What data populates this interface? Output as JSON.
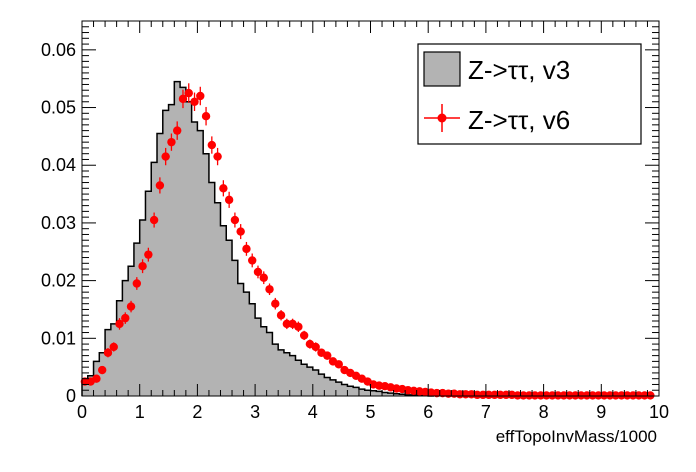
{
  "chart_data": {
    "type": "histogram",
    "xlabel": "effTopoInvMass/1000",
    "ylabel": "",
    "xlim": [
      0,
      10
    ],
    "ylim": [
      0,
      0.065
    ],
    "bin_width": 0.1,
    "x_ticks": [
      "0",
      "1",
      "2",
      "3",
      "4",
      "5",
      "6",
      "7",
      "8",
      "9",
      "10"
    ],
    "y_ticks": [
      "0",
      "0.01",
      "0.02",
      "0.03",
      "0.04",
      "0.05",
      "0.06"
    ],
    "legend_position": "top-right",
    "grid": false,
    "series": [
      {
        "name": "Z->ττ, v3",
        "style": "filled-step",
        "fill_color": "#b3b3b3",
        "line_color": "#000000",
        "bin_low_edges": [
          0.0,
          0.1,
          0.2,
          0.3,
          0.4,
          0.5,
          0.6,
          0.7,
          0.8,
          0.9,
          1.0,
          1.1,
          1.2,
          1.3,
          1.4,
          1.5,
          1.6,
          1.7,
          1.8,
          1.9,
          2.0,
          2.1,
          2.2,
          2.3,
          2.4,
          2.5,
          2.6,
          2.7,
          2.8,
          2.9,
          3.0,
          3.1,
          3.2,
          3.3,
          3.4,
          3.5,
          3.6,
          3.7,
          3.8,
          3.9,
          4.0,
          4.1,
          4.2,
          4.3,
          4.4,
          4.5,
          4.6,
          4.7,
          4.8,
          4.9,
          5.0,
          5.1,
          5.2,
          5.3,
          5.4,
          5.5,
          5.6,
          5.7,
          5.8,
          5.9,
          6.0
        ],
        "values": [
          0.0025,
          0.0035,
          0.006,
          0.0075,
          0.0115,
          0.0125,
          0.0165,
          0.02,
          0.0225,
          0.0265,
          0.0305,
          0.0355,
          0.0405,
          0.0455,
          0.0495,
          0.0505,
          0.0545,
          0.0535,
          0.051,
          0.0475,
          0.046,
          0.042,
          0.037,
          0.0335,
          0.0295,
          0.027,
          0.0235,
          0.0195,
          0.018,
          0.016,
          0.0135,
          0.012,
          0.011,
          0.009,
          0.008,
          0.0075,
          0.007,
          0.0062,
          0.0055,
          0.005,
          0.0045,
          0.0038,
          0.0032,
          0.0028,
          0.0024,
          0.002,
          0.0017,
          0.0015,
          0.0012,
          0.001,
          0.0009,
          0.0008,
          0.0006,
          0.0005,
          0.0004,
          0.0003,
          0.0002,
          0.00015,
          0.0001,
          0.0001,
          0.0
        ]
      },
      {
        "name": "Z->ττ, v6",
        "style": "markers-with-errors",
        "color": "#ff0000",
        "x": [
          0.05,
          0.15,
          0.25,
          0.35,
          0.45,
          0.55,
          0.65,
          0.75,
          0.85,
          0.95,
          1.05,
          1.15,
          1.25,
          1.35,
          1.45,
          1.55,
          1.65,
          1.75,
          1.85,
          1.95,
          2.05,
          2.15,
          2.25,
          2.35,
          2.45,
          2.55,
          2.65,
          2.75,
          2.85,
          2.95,
          3.05,
          3.15,
          3.25,
          3.35,
          3.45,
          3.55,
          3.65,
          3.75,
          3.85,
          3.95,
          4.05,
          4.15,
          4.25,
          4.35,
          4.45,
          4.55,
          4.65,
          4.75,
          4.85,
          4.95,
          5.05,
          5.15,
          5.25,
          5.35,
          5.45,
          5.55,
          5.65,
          5.75,
          5.85,
          5.95,
          6.05,
          6.15,
          6.25,
          6.35,
          6.45,
          6.55,
          6.65,
          6.75,
          6.85,
          6.95,
          7.05,
          7.15,
          7.25,
          7.35,
          7.45,
          7.55,
          7.65,
          7.75,
          7.85,
          7.95,
          8.05,
          8.15,
          8.25,
          8.35,
          8.45,
          8.55,
          8.65,
          8.75,
          8.85,
          8.95,
          9.05,
          9.15,
          9.25,
          9.35,
          9.45,
          9.55,
          9.65,
          9.75,
          9.85
        ],
        "y": [
          0.0025,
          0.0025,
          0.003,
          0.0045,
          0.0075,
          0.0085,
          0.0125,
          0.0135,
          0.0155,
          0.0195,
          0.0225,
          0.0245,
          0.0305,
          0.0365,
          0.0415,
          0.044,
          0.046,
          0.0515,
          0.0525,
          0.051,
          0.052,
          0.0485,
          0.0435,
          0.0415,
          0.036,
          0.034,
          0.0305,
          0.0285,
          0.0255,
          0.0235,
          0.0215,
          0.0205,
          0.0185,
          0.016,
          0.014,
          0.0125,
          0.0125,
          0.012,
          0.0105,
          0.009,
          0.0085,
          0.0075,
          0.007,
          0.006,
          0.0055,
          0.0045,
          0.004,
          0.0035,
          0.003,
          0.0025,
          0.002,
          0.0018,
          0.0017,
          0.0015,
          0.0013,
          0.0012,
          0.001,
          0.0009,
          0.0008,
          0.0007,
          0.0006,
          0.0005,
          0.0005,
          0.0004,
          0.0004,
          0.0003,
          0.0003,
          0.0003,
          0.0002,
          0.0002,
          0.0002,
          0.0002,
          0.0002,
          0.0002,
          0.0002,
          0.0001,
          0.0001,
          0.0001,
          0.0001,
          0.0001,
          0.0001,
          0.0001,
          0.0001,
          0.0001,
          0.0001,
          0.0001,
          0.0001,
          0.0001,
          0.0001,
          0.0001,
          0.0001,
          0.0001,
          0.0001,
          0.0001,
          0.0001,
          0.0001,
          0.0001,
          0.0001,
          0.0001
        ],
        "y_err": [
          0.0006,
          0.0006,
          0.0006,
          0.0007,
          0.0008,
          0.0008,
          0.001,
          0.001,
          0.001,
          0.0011,
          0.0012,
          0.0012,
          0.0013,
          0.0014,
          0.0015,
          0.0015,
          0.0016,
          0.0016,
          0.0017,
          0.0016,
          0.0016,
          0.0016,
          0.0015,
          0.0015,
          0.0014,
          0.0014,
          0.0013,
          0.0013,
          0.0012,
          0.0012,
          0.0011,
          0.0011,
          0.001,
          0.001,
          0.0009,
          0.0009,
          0.0009,
          0.0009,
          0.0008,
          0.0008,
          0.0008,
          0.0007,
          0.0007,
          0.0006,
          0.0006,
          0.0005,
          0.0005,
          0.0005,
          0.0005,
          0.0004,
          0.0004,
          0.0004,
          0.0004,
          0.0004,
          0.0003,
          0.0003,
          0.0003,
          0.0003,
          0.0003,
          0.0003,
          0.0002,
          0.0002,
          0.0002,
          0.0002,
          0.0002,
          0.0002,
          0.0002,
          0.0002,
          0.0002,
          0.0002,
          0.0002,
          0.0002,
          0.0002,
          0.0002,
          0.0002,
          0.0001,
          0.0001,
          0.0001,
          0.0001,
          0.0001,
          0.0001,
          0.0001,
          0.0001,
          0.0001,
          0.0001,
          0.0001,
          0.0001,
          0.0001,
          0.0001,
          0.0001,
          0.0001,
          0.0001,
          0.0001,
          0.0001,
          0.0001,
          0.0001,
          0.0001,
          0.0001,
          0.0001
        ]
      }
    ]
  }
}
